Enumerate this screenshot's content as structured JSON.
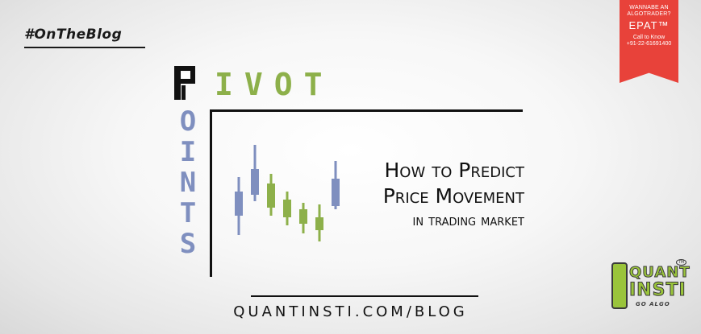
{
  "hashtag": "#OnTheBlog",
  "title": {
    "pivot_initial": "P",
    "pivot_rest": "IVOT",
    "points_letters": [
      "O",
      "I",
      "N",
      "T",
      "S"
    ]
  },
  "headline": {
    "line1": "How to Predict",
    "line2": "Price Movement",
    "line3": "in trading market"
  },
  "url": "QUANTINSTI.COM/BLOG",
  "ribbon": {
    "line1": "WANNABE AN ALGOTRADER?",
    "line2": "EPAT™",
    "line3": "Call to Know",
    "line4": "+91-22-61691400"
  },
  "logo": {
    "line1": "QUANT",
    "line2": "INSTI",
    "line3": "GO ALGO",
    "trademark": "TM"
  },
  "colors": {
    "green": "#8db04a",
    "blue": "#7f8fbf",
    "ribbon_red": "#e8423a",
    "logo_green": "#9ac43b",
    "ink": "#111111"
  },
  "candlesticks": [
    {
      "color": "blue",
      "open": 32,
      "close": 62,
      "high": 80,
      "low": 8
    },
    {
      "color": "blue",
      "open": 58,
      "close": 90,
      "high": 120,
      "low": 50
    },
    {
      "color": "green",
      "open": 72,
      "close": 42,
      "high": 84,
      "low": 32
    },
    {
      "color": "green",
      "open": 52,
      "close": 30,
      "high": 62,
      "low": 20
    },
    {
      "color": "green",
      "open": 40,
      "close": 22,
      "high": 48,
      "low": 10
    },
    {
      "color": "green",
      "open": 30,
      "close": 14,
      "high": 46,
      "low": 0
    },
    {
      "color": "blue",
      "open": 44,
      "close": 78,
      "high": 100,
      "low": 40
    }
  ]
}
